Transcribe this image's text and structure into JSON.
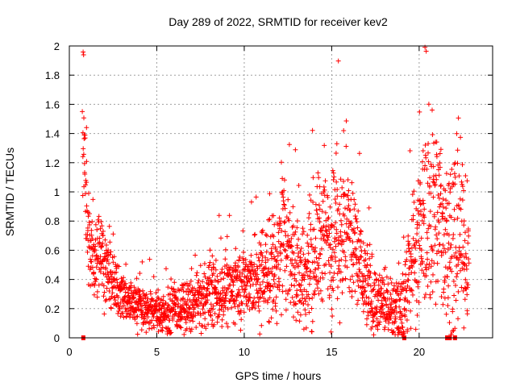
{
  "chart_data": {
    "type": "scatter",
    "title": "Day 289 of 2022, SRMTID for receiver kev2",
    "xlabel": "GPS time / hours",
    "ylabel": "SRMTID / TECUs",
    "xlim": [
      0,
      24.2
    ],
    "ylim": [
      0,
      2
    ],
    "x_ticks": [
      0,
      5,
      10,
      15,
      20
    ],
    "x_tick_labels": [
      "0",
      "5",
      "10",
      "15",
      "20"
    ],
    "y_ticks": [
      0,
      0.2,
      0.4,
      0.6,
      0.8,
      1,
      1.2,
      1.4,
      1.6,
      1.8,
      2
    ],
    "y_tick_labels": [
      "0",
      "0.2",
      "0.4",
      "0.6",
      "0.8",
      "1",
      "1.2",
      "1.4",
      "1.6",
      "1.8",
      "2"
    ],
    "grid": true,
    "marker": "plus",
    "color": "#ff0000",
    "trend": [
      [
        0.8,
        1.45
      ],
      [
        0.9,
        1.1
      ],
      [
        1.0,
        0.8
      ],
      [
        1.2,
        0.55
      ],
      [
        1.5,
        0.55
      ],
      [
        1.8,
        0.65
      ],
      [
        2.0,
        0.5
      ],
      [
        2.5,
        0.35
      ],
      [
        3.0,
        0.3
      ],
      [
        3.5,
        0.25
      ],
      [
        4.0,
        0.22
      ],
      [
        4.5,
        0.2
      ],
      [
        5.0,
        0.18
      ],
      [
        5.5,
        0.17
      ],
      [
        6.0,
        0.2
      ],
      [
        6.5,
        0.2
      ],
      [
        7.0,
        0.22
      ],
      [
        7.5,
        0.25
      ],
      [
        8.0,
        0.3
      ],
      [
        8.5,
        0.3
      ],
      [
        9.0,
        0.32
      ],
      [
        9.5,
        0.35
      ],
      [
        10.0,
        0.38
      ],
      [
        10.5,
        0.38
      ],
      [
        11.0,
        0.4
      ],
      [
        11.5,
        0.45
      ],
      [
        12.0,
        0.55
      ],
      [
        12.3,
        0.7
      ],
      [
        12.6,
        0.65
      ],
      [
        13.0,
        0.45
      ],
      [
        13.5,
        0.4
      ],
      [
        14.0,
        0.6
      ],
      [
        14.5,
        0.7
      ],
      [
        15.0,
        0.65
      ],
      [
        15.5,
        0.75
      ],
      [
        16.0,
        0.7
      ],
      [
        16.5,
        0.55
      ],
      [
        17.0,
        0.35
      ],
      [
        17.5,
        0.25
      ],
      [
        18.0,
        0.22
      ],
      [
        18.5,
        0.2
      ],
      [
        19.0,
        0.2
      ],
      [
        19.5,
        0.45
      ],
      [
        20.0,
        0.75
      ],
      [
        20.5,
        0.85
      ],
      [
        21.0,
        0.9
      ],
      [
        21.5,
        0.7
      ],
      [
        22.0,
        0.6
      ],
      [
        22.3,
        0.8
      ],
      [
        22.7,
        0.5
      ]
    ],
    "spread": [
      [
        0.8,
        0.35
      ],
      [
        1.0,
        0.25
      ],
      [
        1.5,
        0.2
      ],
      [
        3.0,
        0.12
      ],
      [
        5.0,
        0.1
      ],
      [
        8.0,
        0.15
      ],
      [
        10.0,
        0.18
      ],
      [
        12.0,
        0.3
      ],
      [
        13.0,
        0.3
      ],
      [
        14.5,
        0.35
      ],
      [
        16.0,
        0.4
      ],
      [
        17.0,
        0.2
      ],
      [
        18.5,
        0.12
      ],
      [
        19.5,
        0.3
      ],
      [
        20.5,
        0.45
      ],
      [
        21.5,
        0.4
      ],
      [
        22.2,
        0.55
      ],
      [
        22.7,
        0.25
      ]
    ],
    "n_points": 2300,
    "data_gaps_at_zero": [
      0.8,
      19.15,
      21.6,
      21.75,
      22.05
    ]
  }
}
